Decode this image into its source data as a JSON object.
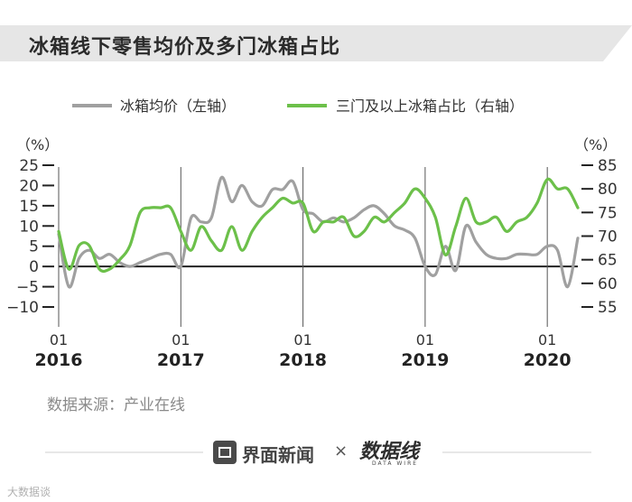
{
  "title": "冰箱线下零售均价及多门冰箱占比",
  "source": "数据来源：产业在线",
  "footer": {
    "brand": "界面新闻",
    "times": "×",
    "partner": "数据线",
    "partner_sub": "DATA WIRE"
  },
  "watermark": "大数据谈",
  "colors": {
    "gray_series": "#a0a0a0",
    "green_series": "#6cc04a",
    "title_band": "#e6e6e6",
    "axis": "#222222"
  },
  "chart_data": {
    "type": "line",
    "title": "冰箱线下零售均价及多门冰箱占比",
    "legend": [
      "冰箱均价（左轴）",
      "三门及以上冰箱占比（右轴）"
    ],
    "left_axis": {
      "unit": "（%）",
      "ticks": [
        "25",
        "20",
        "15",
        "10",
        "5",
        "0",
        "−5",
        "−10"
      ],
      "range": [
        -10,
        25
      ]
    },
    "right_axis": {
      "unit": "（%）",
      "ticks": [
        "85",
        "80",
        "75",
        "70",
        "65",
        "60",
        "55"
      ],
      "range": [
        55,
        85
      ]
    },
    "x_labels": [
      {
        "month": "01",
        "year": "2016",
        "t": 0
      },
      {
        "month": "01",
        "year": "2017",
        "t": 12
      },
      {
        "month": "01",
        "year": "2018",
        "t": 24
      },
      {
        "month": "01",
        "year": "2019",
        "t": 36
      },
      {
        "month": "01",
        "year": "2020",
        "t": 48
      }
    ],
    "x_range": [
      0,
      51
    ],
    "series": [
      {
        "name": "冰箱均价（左轴）",
        "axis": "left",
        "x": [
          0,
          1,
          2,
          3,
          4,
          5,
          6,
          7,
          8,
          9,
          10,
          11,
          12,
          13,
          14,
          15,
          16,
          17,
          18,
          19,
          20,
          21,
          22,
          23,
          24,
          25,
          26,
          27,
          28,
          29,
          30,
          31,
          32,
          33,
          34,
          35,
          36,
          37,
          38,
          39,
          40,
          41,
          42,
          43,
          44,
          45,
          46,
          47,
          48,
          49,
          50,
          51
        ],
        "values": [
          8,
          -5,
          2,
          4,
          2,
          3,
          1,
          0,
          1,
          2,
          3,
          3,
          0,
          12,
          11,
          12,
          22,
          16,
          20,
          16,
          15,
          19,
          19,
          21,
          14,
          13,
          11,
          12,
          11,
          12,
          14,
          15,
          13,
          10,
          9,
          7,
          0,
          -2,
          5,
          -1,
          10,
          6,
          3,
          2,
          2,
          3,
          3,
          3,
          5,
          4,
          -5,
          7
        ]
      },
      {
        "name": "三门及以上冰箱占比（右轴）",
        "axis": "right",
        "x": [
          0,
          1,
          2,
          3,
          4,
          5,
          6,
          7,
          8,
          9,
          10,
          11,
          12,
          13,
          14,
          15,
          16,
          17,
          18,
          19,
          20,
          21,
          22,
          23,
          24,
          25,
          26,
          27,
          28,
          29,
          30,
          31,
          32,
          33,
          34,
          35,
          36,
          37,
          38,
          39,
          40,
          41,
          42,
          43,
          44,
          45,
          46,
          47,
          48,
          49,
          50,
          51
        ],
        "values": [
          71,
          63,
          68,
          68,
          63,
          63,
          65,
          68,
          75,
          76,
          76,
          76,
          71,
          67,
          72,
          69,
          67,
          72,
          67,
          71,
          74,
          76,
          78,
          77,
          77,
          71,
          73,
          73,
          74,
          70,
          71,
          74,
          73,
          75,
          77,
          80,
          78,
          74,
          66,
          72,
          78,
          73,
          73,
          74,
          71,
          73,
          74,
          77,
          82,
          80,
          80,
          76
        ]
      }
    ]
  }
}
